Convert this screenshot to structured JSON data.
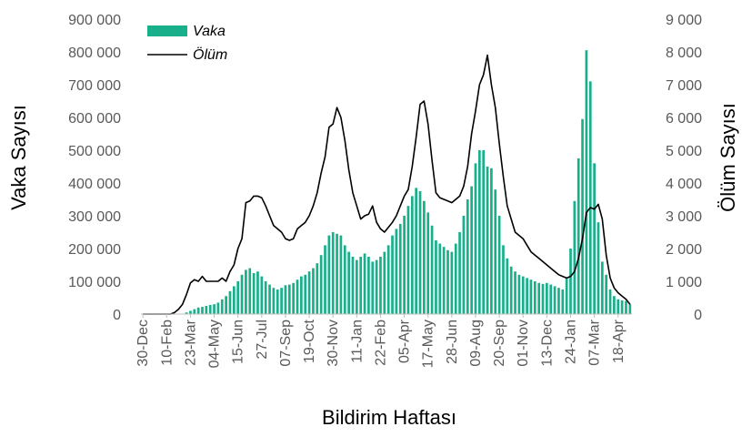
{
  "chart_data": {
    "type": "bar",
    "title": "",
    "xlabel": "Bildirim Haftası",
    "ylabel_left": "Vaka Sayısı",
    "ylabel_right": "Ölüm Sayısı",
    "ylim_left": [
      0,
      900000
    ],
    "ylim_right": [
      0,
      9000
    ],
    "yticks_left": [
      "0",
      "100 000",
      "200 000",
      "300 000",
      "400 000",
      "500 000",
      "600 000",
      "700 000",
      "800 000",
      "900 000"
    ],
    "yticks_right": [
      "0",
      "1 000",
      "2 000",
      "3 000",
      "4 000",
      "5 000",
      "6 000",
      "7 000",
      "8 000",
      "9 000"
    ],
    "x_tick_labels": [
      "30-Dec",
      "10-Feb",
      "23-Mar",
      "04-May",
      "15-Jun",
      "27-Jul",
      "07-Sep",
      "19-Oct",
      "30-Nov",
      "11-Jan",
      "22-Feb",
      "05-Apr",
      "17-May",
      "28-Jun",
      "09-Aug",
      "20-Sep",
      "01-Nov",
      "13-Dec",
      "24-Jan",
      "07-Mar",
      "18-Apr"
    ],
    "grid": false,
    "legend_position": "top-left",
    "colors": {
      "vaka": "#1aaf8b",
      "olum": "#000000",
      "axis": "#bfbfbf",
      "tick_text": "#595959"
    },
    "series": [
      {
        "name": "Vaka",
        "type": "bar",
        "axis": "left",
        "values": [
          0,
          0,
          0,
          0,
          0,
          0,
          0,
          0,
          0,
          0,
          0,
          5000,
          10000,
          15000,
          20000,
          22000,
          25000,
          28000,
          30000,
          35000,
          45000,
          55000,
          70000,
          85000,
          100000,
          120000,
          135000,
          140000,
          125000,
          130000,
          115000,
          100000,
          90000,
          80000,
          75000,
          80000,
          88000,
          90000,
          95000,
          105000,
          115000,
          120000,
          130000,
          140000,
          155000,
          180000,
          210000,
          240000,
          250000,
          245000,
          240000,
          210000,
          190000,
          175000,
          165000,
          175000,
          185000,
          175000,
          160000,
          165000,
          175000,
          190000,
          210000,
          240000,
          260000,
          275000,
          300000,
          330000,
          360000,
          385000,
          375000,
          345000,
          310000,
          270000,
          225000,
          215000,
          205000,
          195000,
          190000,
          215000,
          250000,
          300000,
          350000,
          390000,
          460000,
          500000,
          500000,
          450000,
          445000,
          380000,
          300000,
          210000,
          170000,
          145000,
          130000,
          120000,
          115000,
          110000,
          105000,
          100000,
          95000,
          92000,
          95000,
          90000,
          85000,
          80000,
          75000,
          110000,
          200000,
          345000,
          475000,
          595000,
          805000,
          710000,
          460000,
          280000,
          160000,
          120000,
          75000,
          55000,
          45000,
          42000,
          40000,
          30000
        ]
      },
      {
        "name": "Ölüm",
        "type": "line",
        "axis": "right",
        "values": [
          0,
          0,
          0,
          0,
          0,
          0,
          0,
          0,
          50,
          150,
          300,
          600,
          950,
          1050,
          1000,
          1150,
          1000,
          1000,
          1000,
          1000,
          1100,
          1000,
          1300,
          1500,
          2000,
          2300,
          3400,
          3450,
          3600,
          3600,
          3550,
          3300,
          3000,
          2700,
          2600,
          2500,
          2300,
          2250,
          2300,
          2600,
          2700,
          2800,
          3000,
          3300,
          3700,
          4300,
          4800,
          5700,
          5800,
          6300,
          6000,
          5300,
          4400,
          3700,
          3300,
          2900,
          3000,
          3050,
          3300,
          2800,
          2600,
          2500,
          2650,
          2800,
          3000,
          3300,
          3600,
          3800,
          4500,
          5400,
          6400,
          6500,
          5800,
          4700,
          3700,
          3550,
          3500,
          3450,
          3400,
          3500,
          3600,
          3900,
          4500,
          5500,
          6200,
          7000,
          7300,
          7900,
          7000,
          6300,
          5200,
          4200,
          3300,
          2900,
          2500,
          2400,
          2300,
          2100,
          1900,
          1800,
          1700,
          1600,
          1500,
          1400,
          1300,
          1200,
          1150,
          1100,
          1150,
          1300,
          1700,
          2300,
          3100,
          3250,
          3200,
          3350,
          2900,
          1800,
          1100,
          800,
          650,
          550,
          450,
          300
        ]
      }
    ]
  }
}
